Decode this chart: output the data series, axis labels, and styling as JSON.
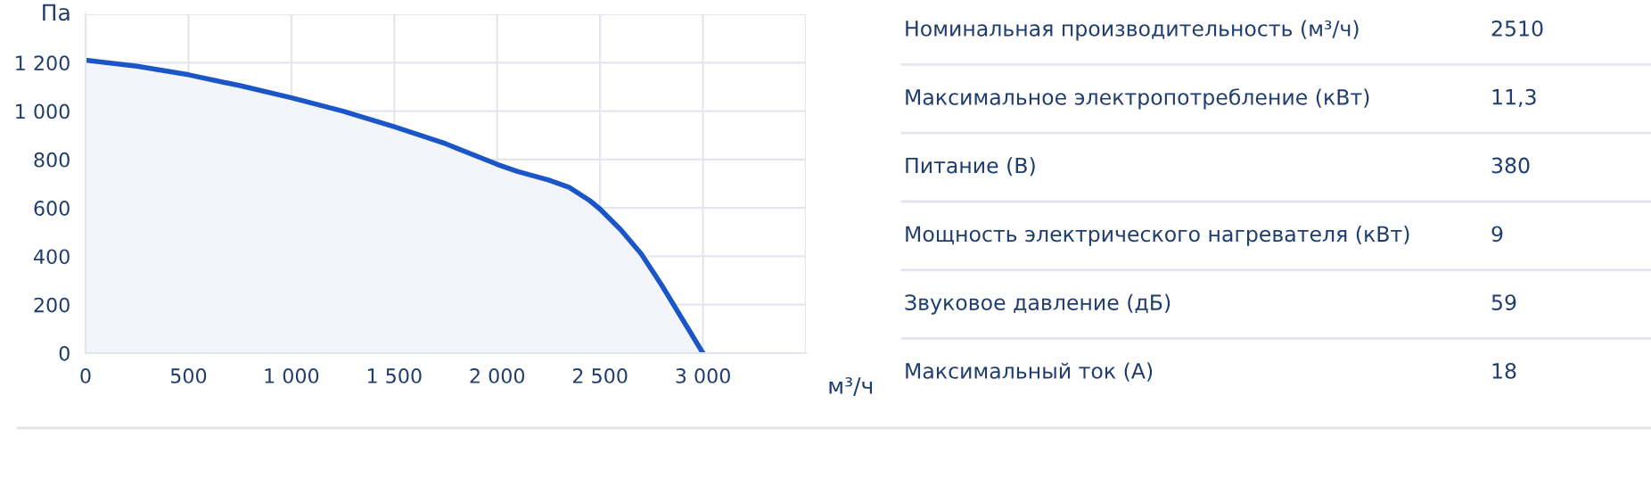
{
  "chart_data": [
    {
      "type": "area",
      "ylabel": "Па",
      "xlabel": "м³/ч",
      "color": "#1a56c8",
      "x": [
        0,
        250,
        500,
        750,
        1000,
        1250,
        1500,
        1750,
        2000,
        2100,
        2250,
        2350,
        2450,
        2500,
        2600,
        2700,
        2800,
        2900,
        3000
      ],
      "values": [
        1210,
        1185,
        1150,
        1105,
        1055,
        1000,
        935,
        865,
        780,
        750,
        715,
        685,
        630,
        595,
        510,
        410,
        280,
        140,
        0
      ],
      "xlim": [
        0,
        3500
      ],
      "ylim": [
        0,
        1400
      ],
      "xticks": [
        0,
        500,
        {
          "value": 1000,
          "label": "1 000"
        },
        {
          "value": 1500,
          "label": "1 500"
        },
        {
          "value": 2000,
          "label": "2 000"
        },
        {
          "value": 2500,
          "label": "2 500"
        },
        {
          "value": 3000,
          "label": "3 000"
        },
        {
          "value": 3500,
          "label": null
        }
      ],
      "yticks": [
        0,
        200,
        400,
        600,
        800,
        {
          "value": 1000,
          "label": "1 000"
        },
        {
          "value": 1200,
          "label": "1 200"
        },
        {
          "value": 1400,
          "label": null
        }
      ],
      "grid": true,
      "legend": false
    },
    {
      "type": "other",
      "categories": [
        "Номинальная производительность (м³/ч)",
        "Максимальное электропотребление (кВт)",
        "Питание (В)",
        "Мощность электрического нагревателя (кВт)",
        "Звуковое давление (дБ)",
        "Максимальный ток (А)"
      ],
      "value_labels": [
        "2510",
        "11,3",
        "380",
        "9",
        "59",
        "18"
      ]
    }
  ]
}
